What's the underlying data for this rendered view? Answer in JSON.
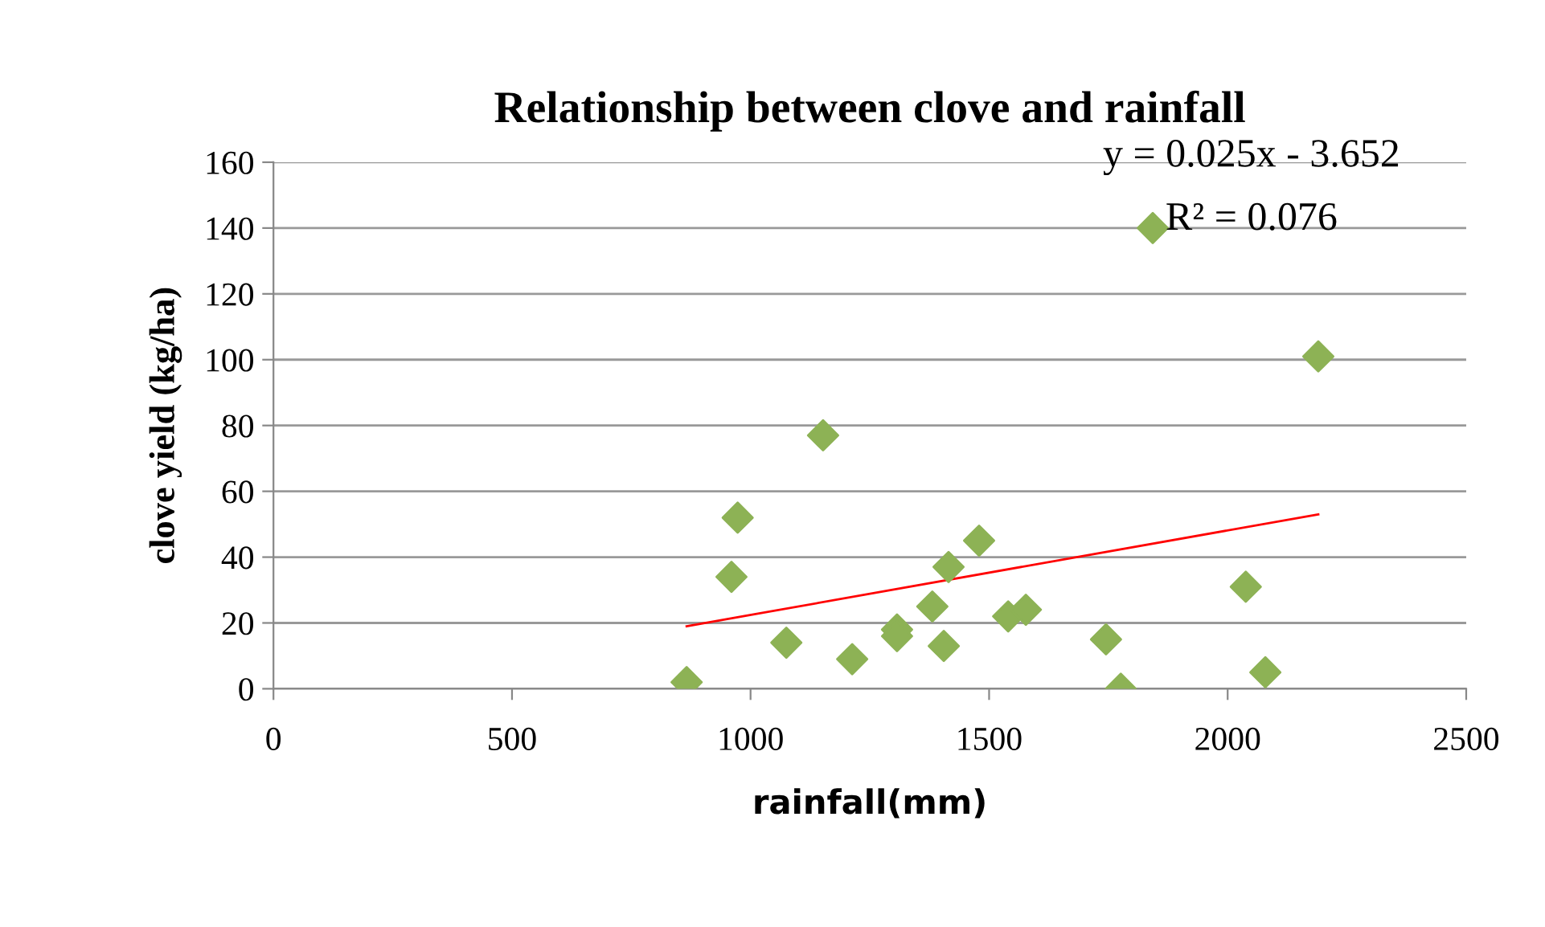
{
  "chart_data": {
    "type": "scatter",
    "title": "Relationship between clove and rainfall",
    "xlabel": "rainfall(mm)",
    "ylabel": "clove yield (kg/ha)",
    "xlim": [
      0,
      2500
    ],
    "xticks": [
      0,
      500,
      1000,
      1500,
      2000,
      2500
    ],
    "ylim": [
      0,
      160
    ],
    "yticks": [
      0,
      20,
      40,
      60,
      80,
      100,
      120,
      140,
      160
    ],
    "grid": "y",
    "series": [
      {
        "marker": "diamond",
        "color": "#8db255",
        "x": [
          866,
          960,
          973,
          1075,
          1152,
          1213,
          1307,
          1307,
          1381,
          1405,
          1415,
          1479,
          1540,
          1577,
          1745,
          1776,
          1843,
          2038,
          2079,
          2190
        ],
        "values": [
          2,
          34,
          52,
          14,
          77,
          9,
          18,
          16,
          25,
          13,
          37,
          45,
          22,
          24,
          15,
          0,
          140,
          31,
          5,
          101
        ]
      },
      {
        "type": "line",
        "marker": "none",
        "color": "#ff0000",
        "x": [
          866,
          2190
        ],
        "values": [
          19,
          53
        ]
      }
    ],
    "annotations": [
      "y = 0.025x - 3.652",
      "R² = 0.076"
    ]
  }
}
